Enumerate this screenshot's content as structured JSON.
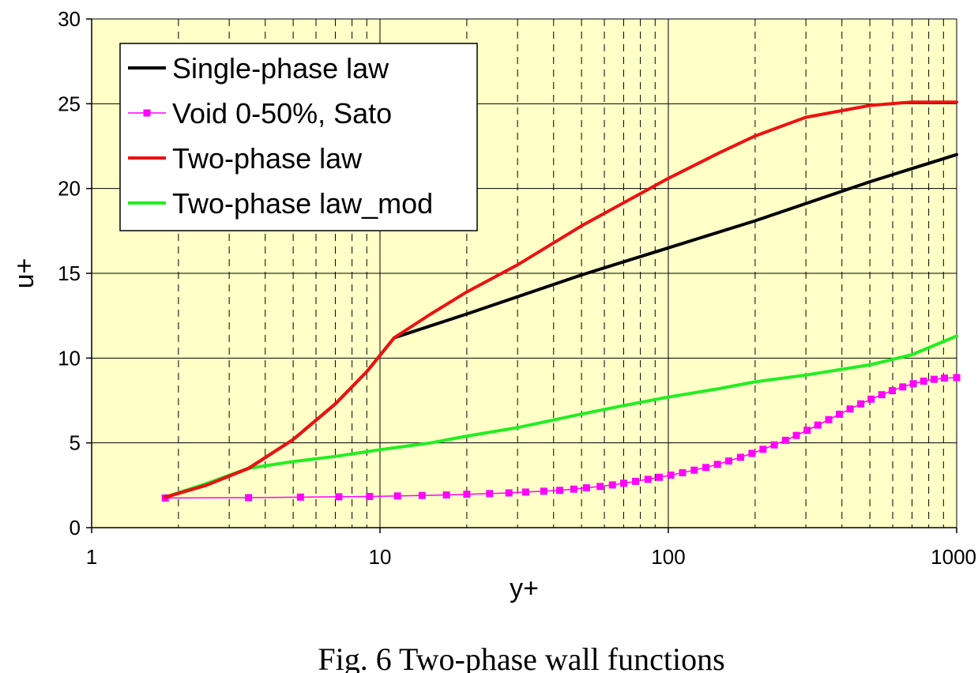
{
  "caption": "Fig. 6 Two-phase wall functions",
  "chart_data": {
    "type": "line",
    "title": "",
    "xlabel": "y+",
    "ylabel": "u+",
    "xscale": "log",
    "xlim": [
      1,
      1000
    ],
    "ylim": [
      0,
      30
    ],
    "xticks": [
      1,
      10,
      100,
      1000
    ],
    "xtick_labels": [
      "1",
      "10",
      "100",
      "1000"
    ],
    "yticks": [
      0,
      5,
      10,
      15,
      20,
      25,
      30
    ],
    "ytick_labels": [
      "0",
      "5",
      "10",
      "15",
      "20",
      "25",
      "30"
    ],
    "grid": true,
    "grid_minor_x": "dashed",
    "legend_position": "top-left",
    "colors": {
      "plot_background": "#ffffc8",
      "grid": "#000000"
    },
    "series": [
      {
        "name": "Single-phase law",
        "color": "#000000",
        "marker": "none",
        "x": [
          1.8,
          2.5,
          3.5,
          5,
          7,
          9,
          11.2,
          20,
          50,
          100,
          200,
          500,
          1000
        ],
        "y": [
          1.8,
          2.5,
          3.5,
          5.2,
          7.3,
          9.2,
          11.2,
          12.6,
          14.9,
          16.5,
          18.1,
          20.4,
          22.0
        ]
      },
      {
        "name": "Void 0-50%, Sato",
        "color": "#ff00ff",
        "marker": "square",
        "x": [
          1.8,
          3.5,
          5.3,
          7.2,
          9.2,
          11.5,
          14,
          17,
          20,
          24,
          28,
          32,
          37,
          42,
          47,
          52,
          58,
          64,
          70,
          77,
          85,
          93,
          102,
          112,
          123,
          135,
          148,
          162,
          178,
          195,
          213,
          233,
          255,
          278,
          303,
          330,
          360,
          392,
          427,
          465,
          505,
          550,
          598,
          650,
          707,
          768,
          835,
          907,
          1000
        ],
        "y": [
          1.75,
          1.77,
          1.8,
          1.82,
          1.84,
          1.87,
          1.9,
          1.93,
          1.97,
          2.01,
          2.05,
          2.1,
          2.15,
          2.2,
          2.27,
          2.35,
          2.43,
          2.52,
          2.62,
          2.73,
          2.85,
          2.97,
          3.1,
          3.24,
          3.39,
          3.55,
          3.73,
          3.93,
          4.15,
          4.38,
          4.62,
          4.88,
          5.15,
          5.44,
          5.74,
          6.05,
          6.37,
          6.69,
          7.0,
          7.3,
          7.58,
          7.84,
          8.08,
          8.3,
          8.49,
          8.64,
          8.75,
          8.82,
          8.85
        ]
      },
      {
        "name": "Two-phase law",
        "color": "#ee1111",
        "marker": "none",
        "x": [
          1.8,
          2.5,
          3.5,
          5,
          7,
          9,
          11.2,
          15,
          20,
          30,
          50,
          100,
          150,
          200,
          300,
          500,
          700,
          1000
        ],
        "y": [
          1.8,
          2.5,
          3.5,
          5.2,
          7.3,
          9.2,
          11.2,
          12.6,
          13.9,
          15.5,
          17.8,
          20.6,
          22.1,
          23.1,
          24.2,
          24.9,
          25.1,
          25.1
        ]
      },
      {
        "name": "Two-phase law_mod",
        "color": "#22ee22",
        "marker": "none",
        "x": [
          1.8,
          2.5,
          3.5,
          5,
          7,
          10,
          15,
          20,
          30,
          50,
          70,
          100,
          150,
          200,
          300,
          500,
          700,
          1000
        ],
        "y": [
          1.8,
          2.6,
          3.5,
          3.9,
          4.2,
          4.6,
          5.0,
          5.4,
          5.9,
          6.7,
          7.2,
          7.7,
          8.2,
          8.6,
          9.0,
          9.6,
          10.2,
          11.3
        ]
      }
    ]
  }
}
